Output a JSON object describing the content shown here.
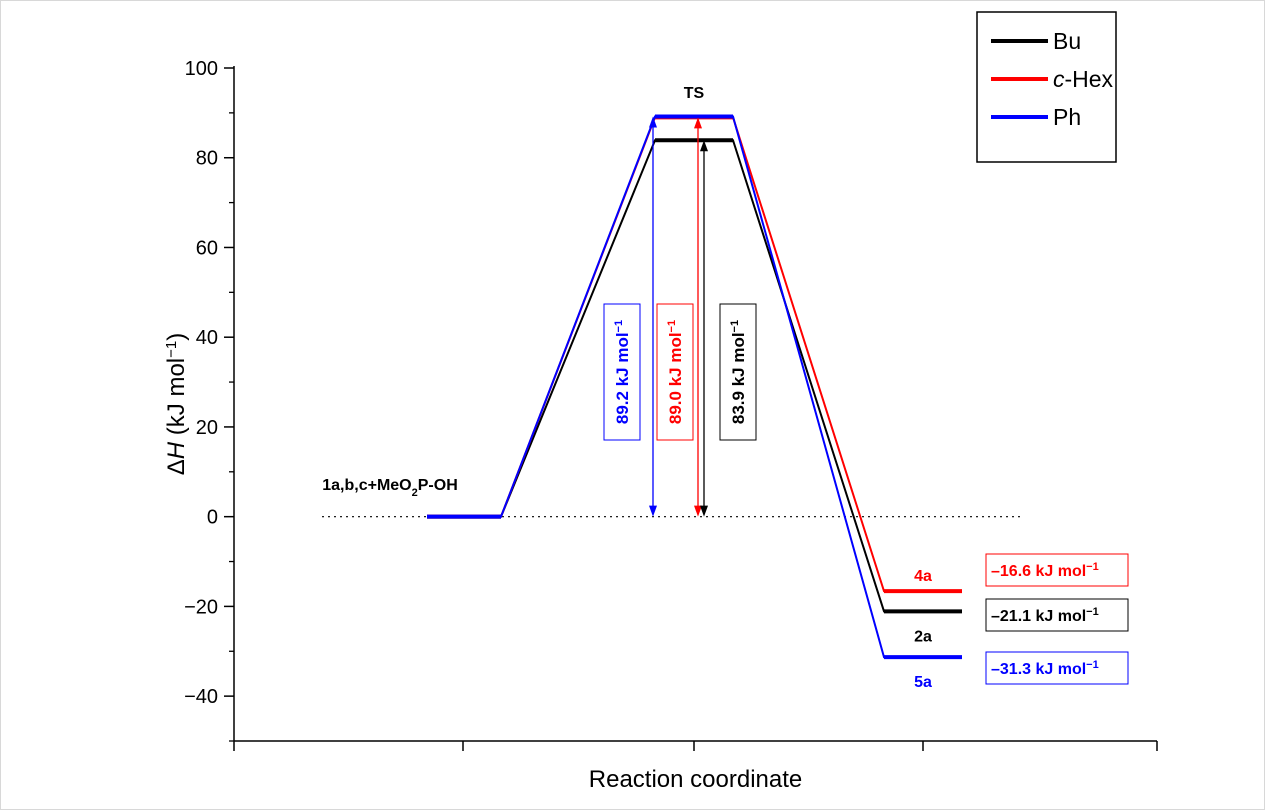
{
  "chart_data": {
    "type": "line",
    "title": "",
    "xlabel": "Reaction coordinate",
    "ylabel": {
      "prefix": "Δ",
      "italic": "H",
      "rest": " (kJ mol",
      "sup": "−1",
      "close": ")"
    },
    "ylim": [
      -50,
      100
    ],
    "y_ticks": [
      -40,
      -20,
      0,
      20,
      40,
      60,
      80,
      100
    ],
    "y_tick_labels": [
      "−40",
      "−20",
      "0",
      "20",
      "40",
      "60",
      "80",
      "100"
    ],
    "x_tick_labels": [],
    "legend": {
      "position": "top-right",
      "entries": [
        {
          "series": "Bu",
          "parts": [
            {
              "text": "Bu",
              "italic": false
            }
          ]
        },
        {
          "series": "c-Hex",
          "parts": [
            {
              "text": "c",
              "italic": true
            },
            {
              "text": "-Hex",
              "italic": false
            }
          ]
        },
        {
          "series": "Ph",
          "parts": [
            {
              "text": "Ph",
              "italic": false
            }
          ]
        }
      ]
    },
    "series": [
      {
        "name": "Bu",
        "color": "#000000",
        "values": [
          0,
          83.9,
          -21.1
        ],
        "product": "2a",
        "product_label_position": "below"
      },
      {
        "name": "c-Hex",
        "color": "#ff0000",
        "values": [
          0,
          89.0,
          -16.6
        ],
        "product": "4a",
        "product_label_position": "above"
      },
      {
        "name": "Ph",
        "color": "#0000ff",
        "values": [
          0,
          89.2,
          -31.3
        ],
        "product": "5a",
        "product_label_position": "below"
      }
    ],
    "states": [
      {
        "label_parts": [
          {
            "text": "1a,b,c+MeO"
          },
          {
            "text": "2",
            "sub": true
          },
          {
            "text": "P-OH"
          }
        ]
      },
      {
        "label_parts": [
          {
            "text": "TS"
          }
        ]
      },
      {
        "label_parts": []
      }
    ],
    "reference_line": {
      "y": 0,
      "style": "dotted"
    },
    "barrier_labels": [
      {
        "series": "Ph",
        "value": "89.2",
        "text": "89.2 kJ mol",
        "sup": "−1"
      },
      {
        "series": "c-Hex",
        "value": "89.0",
        "text": "89.0 kJ mol",
        "sup": "−1"
      },
      {
        "series": "Bu",
        "value": "83.9",
        "text": "83.9 kJ mol",
        "sup": "−1"
      }
    ],
    "product_value_labels": [
      {
        "series": "c-Hex",
        "text": "–16.6 kJ mol",
        "sup": "−1"
      },
      {
        "series": "Bu",
        "text": "–21.1 kJ mol",
        "sup": "−1"
      },
      {
        "series": "Ph",
        "text": "–31.3 kJ mol",
        "sup": "−1"
      }
    ],
    "grid": false
  }
}
